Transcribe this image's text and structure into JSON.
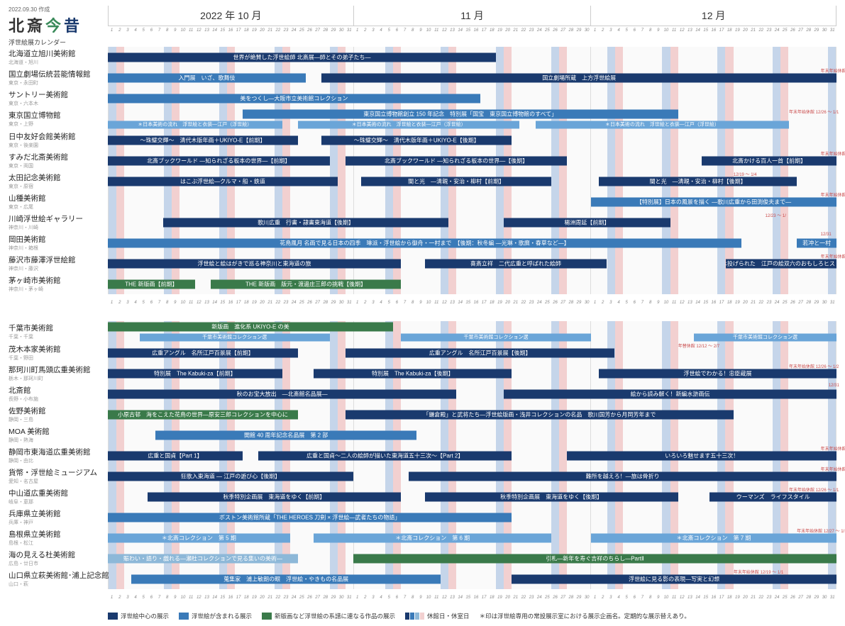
{
  "meta": {
    "created": "2022.09.30 作成"
  },
  "brand": {
    "hokusai": "北斎",
    "kon": "今",
    "jaku": "昔",
    "subtitle": "浮世絵展カレンダー"
  },
  "months": [
    {
      "label": "2022 年 10 月",
      "days": 31
    },
    {
      "label": "11 月",
      "days": 30
    },
    {
      "label": "12 月",
      "days": 31
    }
  ],
  "colors": {
    "navy": "#1a3a6e",
    "blue": "#3a7ab8",
    "lightblue": "#6aa5d8",
    "green": "#3a7a4a",
    "paleblue": "#8db8d8",
    "sat": "#c5d5ea",
    "sun": "#f2d0d0",
    "note": "#c94a4a"
  },
  "weekday_pattern_2022_10": [
    6,
    0,
    1,
    2,
    3,
    4,
    5,
    6,
    0,
    1,
    2,
    3,
    4,
    5,
    6,
    0,
    1,
    2,
    3,
    4,
    5,
    6,
    0,
    1,
    2,
    3,
    4,
    5,
    6,
    0,
    1
  ],
  "weekday_pattern_2022_11": [
    2,
    3,
    4,
    5,
    6,
    0,
    1,
    2,
    3,
    4,
    5,
    6,
    0,
    1,
    2,
    3,
    4,
    5,
    6,
    0,
    1,
    2,
    3,
    4,
    5,
    6,
    0,
    1,
    2,
    3
  ],
  "weekday_pattern_2022_12": [
    4,
    5,
    6,
    0,
    1,
    2,
    3,
    4,
    5,
    6,
    0,
    1,
    2,
    3,
    4,
    5,
    6,
    0,
    1,
    2,
    3,
    4,
    5,
    6,
    0,
    1,
    2,
    3,
    4,
    5,
    6
  ],
  "legend": {
    "navy": "浮世絵中心の展示",
    "blue": "浮世絵が含まれる展示",
    "green": "新版画など浮世絵の系譜に連なる作品の展示",
    "closed": "休館日・休室日",
    "star": "＊印は浮世絵専用の常設展示室における展示企画名。定期的な展示替えあり。"
  },
  "groups": [
    {
      "museums": [
        {
          "name": "北海道立旭川美術館",
          "loc": "北海道・旭川",
          "bars": [
            {
              "start": 0,
              "end": 49,
              "color": "navy",
              "label": "世界が絶賛した浮世絵師 北斎展―師とその弟子たち―"
            }
          ]
        },
        {
          "name": "国立劇場伝統芸能情報館",
          "loc": "東京・永田町",
          "bars": [
            {
              "start": 0,
              "end": 25,
              "color": "blue",
              "label": "入門展　いざ、歌舞伎"
            },
            {
              "start": 27,
              "end": 92,
              "color": "navy",
              "label": "国立劇場所蔵　上方浮世絵展"
            }
          ],
          "notes": [
            {
              "at": 90,
              "text": "年末年始休館 12/29 ～ 1/2"
            }
          ]
        },
        {
          "name": "サントリー美術館",
          "loc": "東京・六本木",
          "bars": [
            {
              "start": 0,
              "end": 47,
              "color": "blue",
              "label": "美をつくし―大阪市立美術館コレクション"
            }
          ]
        },
        {
          "name": "東京国立博物館",
          "loc": "東京・上野",
          "stacked": true,
          "bars": [
            {
              "start": 17,
              "end": 72,
              "color": "blue",
              "label": "東京国立博物館創立 150 年記念　特別展「国宝　東京国立博物館のすべて」",
              "row": 0
            },
            {
              "start": 0,
              "end": 22,
              "color": "lightblue",
              "label": "＊日本美術の流れ　浮世絵と衣装―江戸（浮世絵）",
              "row": 1
            },
            {
              "start": 24,
              "end": 52,
              "color": "lightblue",
              "label": "＊日本美術の流れ　浮世絵と衣装―江戸（浮世絵）",
              "row": 1
            },
            {
              "start": 54,
              "end": 86,
              "color": "lightblue",
              "label": "＊日本美術の流れ　浮世絵と衣装―江戸（浮世絵）",
              "row": 1
            }
          ],
          "notes": [
            {
              "at": 86,
              "text": "年末年始休館 12/26 ～ 1/1"
            }
          ]
        },
        {
          "name": "日中友好会館美術館",
          "loc": "東京・後楽園",
          "bars": [
            {
              "start": 0,
              "end": 24,
              "color": "navy",
              "label": "～珠璧交輝～　清代木版年画＋UKIYO-E【前期】"
            },
            {
              "start": 27,
              "end": 51,
              "color": "navy",
              "label": "～珠璧交輝～　清代木版年画＋UKIYO-E【後期】"
            }
          ]
        },
        {
          "name": "すみだ北斎美術館",
          "loc": "東京・両国",
          "bars": [
            {
              "start": 0,
              "end": 28,
              "color": "navy",
              "label": "北斎ブックワールド ―知られざる板本の世界―【前期】"
            },
            {
              "start": 30,
              "end": 58,
              "color": "navy",
              "label": "北斎ブックワールド ―知られざる板本の世界―【後期】"
            },
            {
              "start": 75,
              "end": 92,
              "color": "navy",
              "label": "北斎かける百人一首【前期】"
            }
          ],
          "notes": [
            {
              "at": 90,
              "text": "年末年始休館 12/29 ～ 1/1"
            }
          ]
        },
        {
          "name": "太田記念美術館",
          "loc": "東京・原宿",
          "bars": [
            {
              "start": 0,
              "end": 29,
              "color": "navy",
              "label": "はこぶ浮世絵―クルマ・船・鉄道"
            },
            {
              "start": 32,
              "end": 56,
              "color": "navy",
              "label": "闇と光　―清親・安治・柳村【前期】"
            },
            {
              "start": 62,
              "end": 87,
              "color": "navy",
              "label": "闇と光　―清親・安治・柳村【後期】"
            }
          ],
          "notes": [
            {
              "at": 79,
              "text": "12/19 ～ 1/4"
            }
          ]
        },
        {
          "name": "山種美術館",
          "loc": "東京・広尾",
          "bars": [
            {
              "start": 61,
              "end": 92,
              "color": "blue",
              "label": "【特別展】日本の風景を描く ―歌川広重から田渕俊夫まで―"
            }
          ],
          "notes": [
            {
              "at": 90,
              "text": "年末年始休館 12/29 ～ 1/2"
            }
          ]
        },
        {
          "name": "川崎浮世絵ギャラリー",
          "loc": "神奈川・川崎",
          "bars": [
            {
              "start": 7,
              "end": 43,
              "color": "navy",
              "label": "歌川広重　行書・隷書東海道【後期】"
            },
            {
              "start": 50,
              "end": 71,
              "color": "navy",
              "label": "楊洲周延【前期】"
            }
          ],
          "notes": [
            {
              "at": 83,
              "text": "12/23 ～ 1/"
            }
          ]
        },
        {
          "name": "岡田美術館",
          "loc": "神奈川・箱根",
          "bars": [
            {
              "start": 0,
              "end": 80,
              "color": "blue",
              "label": "花鳥風月 名画で見る日本の四季　琳派・浮世絵から御舟・一村まで　【後期：秋冬編 ―光琳・歌麿・春草など―】"
            },
            {
              "start": 87,
              "end": 92,
              "color": "blue",
              "label": "若冲と一村"
            }
          ],
          "notes": [
            {
              "at": 90,
              "text": "12/31"
            }
          ]
        },
        {
          "name": "藤沢市藤澤浮世絵館",
          "loc": "神奈川・藤沢",
          "bars": [
            {
              "start": 0,
              "end": 37,
              "color": "navy",
              "label": "浮世絵と絵はがきで巡る神奈川と東海道の旅"
            },
            {
              "start": 40,
              "end": 63,
              "color": "navy",
              "label": "喜斎立祥　二代広重と呼ばれた絵師"
            },
            {
              "start": 78,
              "end": 92,
              "color": "navy",
              "label": "サイは投げられた　江戸の絵双六のおもしろヒストリー"
            }
          ],
          "notes": [
            {
              "at": 90,
              "text": "年末年始休館 12/29 ～ 1/3"
            }
          ]
        },
        {
          "name": "茅ヶ崎市美術館",
          "loc": "神奈川・茅ヶ崎",
          "bars": [
            {
              "start": 0,
              "end": 11,
              "color": "green",
              "label": "THE 新版画【前期】"
            },
            {
              "start": 13,
              "end": 37,
              "color": "green",
              "label": "THE 新版画　版元・渡邊庄三郎の挑戦【後期】"
            }
          ]
        }
      ]
    },
    {
      "museums": [
        {
          "name": "千葉市美術館",
          "loc": "千葉・千葉",
          "stacked": true,
          "bars": [
            {
              "start": 0,
              "end": 36,
              "color": "green",
              "label": "新版画　進化系 UKIYO-E の美",
              "row": 0
            },
            {
              "start": 4,
              "end": 28,
              "color": "lightblue",
              "label": "千葉市美術館コレクション選",
              "row": 1
            },
            {
              "start": 37,
              "end": 61,
              "color": "lightblue",
              "label": "千葉市美術館コレクション選",
              "row": 1
            },
            {
              "start": 74,
              "end": 92,
              "color": "lightblue",
              "label": "千葉市美術館コレクション選",
              "row": 1
            }
          ]
        },
        {
          "name": "茂木本家美術館",
          "loc": "千葉・野田",
          "bars": [
            {
              "start": 0,
              "end": 24,
              "color": "navy",
              "label": "広重アングル　名所江戸百景展【前期】"
            },
            {
              "start": 30,
              "end": 64,
              "color": "navy",
              "label": "広重アングル　名所江戸百景展【後期】"
            }
          ],
          "notes": [
            {
              "at": 72,
              "text": "年替休館 12/12 ～ 2/7"
            }
          ]
        },
        {
          "name": "那珂川町馬頭広重美術館",
          "loc": "栃木・那珂川町",
          "bars": [
            {
              "start": 0,
              "end": 22,
              "color": "navy",
              "label": "特別展　The Kabuki-za【前期】"
            },
            {
              "start": 26,
              "end": 51,
              "color": "navy",
              "label": "特別展　The Kabuki-za【後期】"
            },
            {
              "start": 62,
              "end": 92,
              "color": "navy",
              "label": "浮世絵でわかる！忠臣蔵展"
            }
          ],
          "notes": [
            {
              "at": 86,
              "text": "年末年始休館 12/26 ～ 1/2"
            }
          ]
        },
        {
          "name": "北斎館",
          "loc": "長野・小布施",
          "bars": [
            {
              "start": 0,
              "end": 44,
              "color": "navy",
              "label": "秋のお宝大放出　―北斎館名品展―"
            },
            {
              "start": 50,
              "end": 92,
              "color": "navy",
              "label": "絵から読み解く！新編水滸画伝"
            }
          ],
          "notes": [
            {
              "at": 91,
              "text": "12/31"
            }
          ]
        },
        {
          "name": "佐野美術館",
          "loc": "静岡・三島",
          "bars": [
            {
              "start": 0,
              "end": 24,
              "color": "green",
              "label": "小原古邨　海をこえた花鳥の世界―原安三郎コレクションを中心に"
            },
            {
              "start": 30,
              "end": 79,
              "color": "navy",
              "label": "「鎌倉殿」と武将たち―浮世絵版画・浅井コレクションの名品　歌川国芳から月岡芳年まで"
            }
          ]
        },
        {
          "name": "MOA 美術館",
          "loc": "静岡・熱海",
          "bars": [
            {
              "start": 6,
              "end": 39,
              "color": "blue",
              "label": "開館 40 周年記念名品展　第 2 部"
            }
          ]
        },
        {
          "name": "静岡市東海道広重美術館",
          "loc": "静岡・由比",
          "bars": [
            {
              "start": 0,
              "end": 17,
              "color": "navy",
              "label": "広重と国貞【Part 1】"
            },
            {
              "start": 19,
              "end": 51,
              "color": "navy",
              "label": "広重と国貞～二人の絵師が描いた東海道五十三次～【Part 2】"
            },
            {
              "start": 58,
              "end": 92,
              "color": "navy",
              "label": "いろいろ魅せます五十三次！"
            }
          ],
          "notes": [
            {
              "at": 90,
              "text": "年末年始休館 12/28 ～ 1/4"
            }
          ]
        },
        {
          "name": "貨幣・浮世絵ミュージアム",
          "loc": "愛知・名古屋",
          "bars": [
            {
              "start": 0,
              "end": 31,
              "color": "navy",
              "label": "狂歌入東海道 ― 江戸の遊び心【後期】"
            },
            {
              "start": 38,
              "end": 92,
              "color": "navy",
              "label": "難所を越えろ！―旅は骨折り"
            }
          ],
          "notes": [
            {
              "at": 90,
              "text": "年末年始休館 12/31 ～ 1/3"
            }
          ]
        },
        {
          "name": "中山道広重美術館",
          "loc": "岐阜・恵那",
          "bars": [
            {
              "start": 5,
              "end": 37,
              "color": "navy",
              "label": "秋季特別企画展　東海道をゆく【前期】"
            },
            {
              "start": 40,
              "end": 72,
              "color": "navy",
              "label": "秋季特別企画展　東海道をゆく【後期】"
            },
            {
              "start": 76,
              "end": 92,
              "color": "navy",
              "label": "ウーマンズ　ライフスタイル"
            }
          ],
          "notes": [
            {
              "at": 86,
              "text": "年末年始休館 12/26 ～ 1/1"
            }
          ]
        },
        {
          "name": "兵庫県立美術館",
          "loc": "兵庫・神戸",
          "bars": [
            {
              "start": 0,
              "end": 51,
              "color": "blue",
              "label": "ボストン美術館所蔵「THE HEROES 刀剣 × 浮世絵―武者たちの物語」"
            }
          ]
        },
        {
          "name": "島根県立美術館",
          "loc": "島根・松江",
          "bars": [
            {
              "start": 0,
              "end": 23,
              "color": "lightblue",
              "label": "＊北斎コレクション　第 5 期"
            },
            {
              "start": 26,
              "end": 56,
              "color": "lightblue",
              "label": "＊北斎コレクション　第 6 期"
            },
            {
              "start": 61,
              "end": 92,
              "color": "lightblue",
              "label": "＊北斎コレクション　第 7 期"
            }
          ],
          "notes": [
            {
              "at": 87,
              "text": "年末年始休館 12/27 ～ 1/1"
            }
          ]
        },
        {
          "name": "海の見える杜美術館",
          "loc": "広島・廿日市",
          "bars": [
            {
              "start": 0,
              "end": 24,
              "color": "paleblue",
              "label": "賑わい・語り・戯れる―瀬杜コレクションで見る集いの美術―"
            },
            {
              "start": 31,
              "end": 92,
              "color": "green",
              "label": "引札―新年を寿ぐ吉祥のちらし―PartⅡ"
            }
          ]
        },
        {
          "name": "山口県立萩美術館･浦上記念館",
          "loc": "山口・萩",
          "bars": [
            {
              "start": 3,
              "end": 42,
              "color": "blue",
              "label": "蒐集家　浦上敏朗の眼　浮世絵・やきもの名品展"
            },
            {
              "start": 51,
              "end": 92,
              "color": "navy",
              "label": "浮世絵に見る影の表現―写実と幻想"
            }
          ],
          "notes": [
            {
              "at": 79,
              "text": "年末年始休館 12/19 ～ 1/1"
            }
          ]
        }
      ]
    }
  ]
}
